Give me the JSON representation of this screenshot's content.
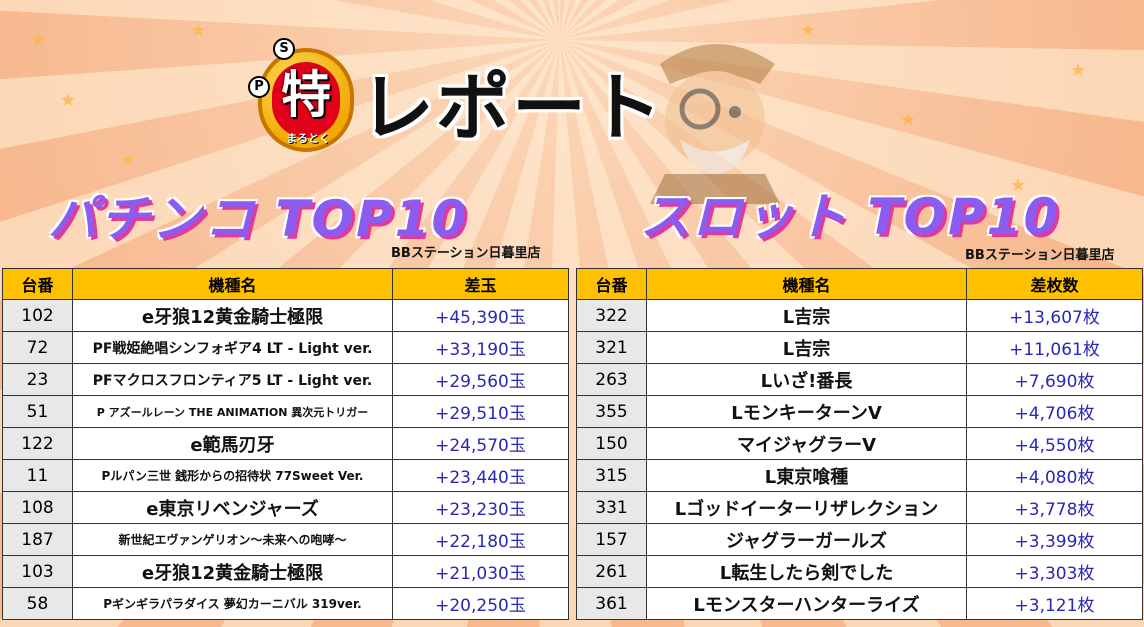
{
  "logo": {
    "s_mark": "S",
    "p_mark": "P",
    "toku": "特",
    "sub": "まるとく",
    "report": "レポート"
  },
  "pachinko": {
    "title": "パチンコ TOP10",
    "store": "BBステーション日暮里店",
    "headers": [
      "台番",
      "機種名",
      "差玉"
    ],
    "rows": [
      {
        "num": "102",
        "name": "e牙狼12黄金騎士極限",
        "value": "+45,390玉"
      },
      {
        "num": "72",
        "name": "PF戦姫絶唱シンフォギア4 LT - Light ver.",
        "value": "+33,190玉"
      },
      {
        "num": "23",
        "name": "PFマクロスフロンティア5 LT - Light ver.",
        "value": "+29,560玉"
      },
      {
        "num": "51",
        "name": "P アズールレーン THE ANIMATION 異次元トリガー",
        "value": "+29,510玉"
      },
      {
        "num": "122",
        "name": "e範馬刃牙",
        "value": "+24,570玉"
      },
      {
        "num": "11",
        "name": "Pルパン三世 銭形からの招待状 77Sweet Ver.",
        "value": "+23,440玉"
      },
      {
        "num": "108",
        "name": "e東京リベンジャーズ",
        "value": "+23,230玉"
      },
      {
        "num": "187",
        "name": "新世紀エヴァンゲリオン～未来への咆哮～",
        "value": "+22,180玉"
      },
      {
        "num": "103",
        "name": "e牙狼12黄金騎士極限",
        "value": "+21,030玉"
      },
      {
        "num": "58",
        "name": "Pギンギラパラダイス 夢幻カーニバル 319ver.",
        "value": "+20,250玉"
      }
    ]
  },
  "slot": {
    "title": "スロット TOP10",
    "store": "BBステーション日暮里店",
    "headers": [
      "台番",
      "機種名",
      "差枚数"
    ],
    "rows": [
      {
        "num": "322",
        "name": "L吉宗",
        "value": "+13,607枚"
      },
      {
        "num": "321",
        "name": "L吉宗",
        "value": "+11,061枚"
      },
      {
        "num": "263",
        "name": "Lいざ!番長",
        "value": "+7,690枚"
      },
      {
        "num": "355",
        "name": "LモンキーターンV",
        "value": "+4,706枚"
      },
      {
        "num": "150",
        "name": "マイジャグラーV",
        "value": "+4,550枚"
      },
      {
        "num": "315",
        "name": "L東京喰種",
        "value": "+4,080枚"
      },
      {
        "num": "331",
        "name": "Lゴッドイーターリザレクション",
        "value": "+3,778枚"
      },
      {
        "num": "157",
        "name": "ジャグラーガールズ",
        "value": "+3,399枚"
      },
      {
        "num": "261",
        "name": "L転生したら剣でした",
        "value": "+3,303枚"
      },
      {
        "num": "361",
        "name": "Lモンスターハンターライズ",
        "value": "+3,121枚"
      }
    ]
  },
  "colors": {
    "header_bg": "#ffc000",
    "value_text": "#2727b8",
    "title_purple": "#8a5cf0",
    "title_shadow": "#e03a9a"
  }
}
